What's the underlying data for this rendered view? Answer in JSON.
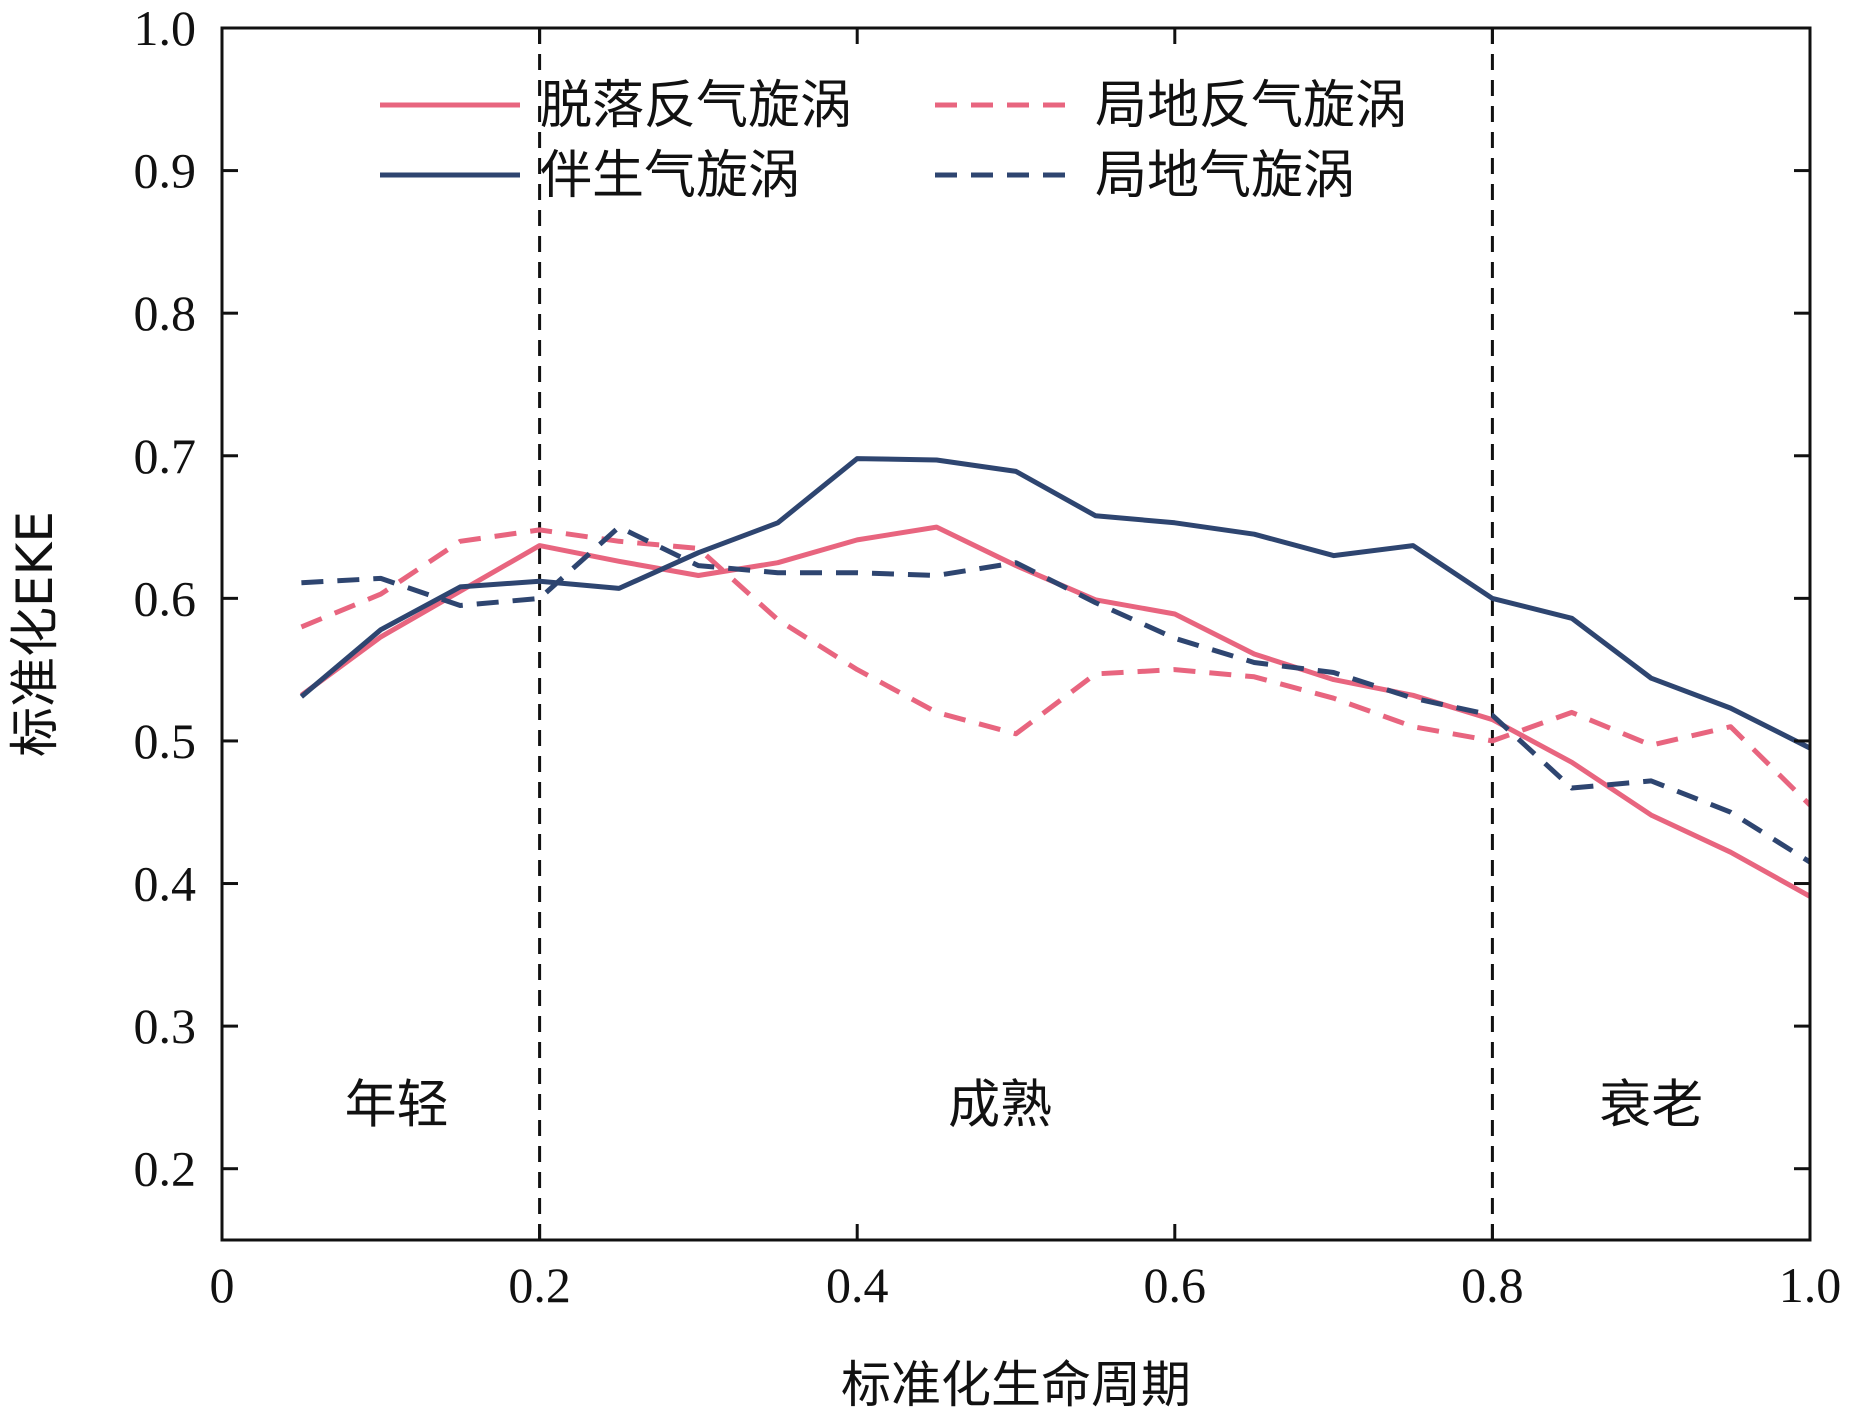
{
  "chart_data": {
    "type": "line",
    "title": "",
    "xlabel": "标准化生命周期",
    "ylabel": "标准化EKE",
    "xlim": [
      0,
      1.0
    ],
    "ylim": [
      0.15,
      1.0
    ],
    "x_ticks": [
      0,
      0.2,
      0.4,
      0.6,
      0.8,
      1.0
    ],
    "x_tick_labels": [
      "0",
      "0.2",
      "0.4",
      "0.6",
      "0.8",
      "1.0"
    ],
    "y_ticks": [
      0.2,
      0.3,
      0.4,
      0.5,
      0.6,
      0.7,
      0.8,
      0.9,
      1.0
    ],
    "y_tick_labels": [
      "0.2",
      "0.3",
      "0.4",
      "0.5",
      "0.6",
      "0.7",
      "0.8",
      "0.9",
      "1.0"
    ],
    "grid": false,
    "legend_position": "top",
    "stage_boundaries": [
      0.2,
      0.8
    ],
    "stages": [
      {
        "label": "年轻",
        "x": 0.11,
        "y": 0.245
      },
      {
        "label": "成熟",
        "x": 0.49,
        "y": 0.245
      },
      {
        "label": "衰老",
        "x": 0.9,
        "y": 0.245
      }
    ],
    "x": [
      0.05,
      0.1,
      0.15,
      0.2,
      0.25,
      0.3,
      0.35,
      0.4,
      0.45,
      0.5,
      0.55,
      0.6,
      0.65,
      0.7,
      0.75,
      0.8,
      0.85,
      0.9,
      0.95,
      1.0
    ],
    "series": [
      {
        "name": "脱落反气旋涡",
        "color": "#e8657f",
        "dash": "solid",
        "values": [
          0.532,
          0.573,
          0.605,
          0.637,
          0.626,
          0.616,
          0.625,
          0.641,
          0.65,
          0.623,
          0.599,
          0.589,
          0.561,
          0.543,
          0.532,
          0.515,
          0.485,
          0.448,
          0.422,
          0.391
        ]
      },
      {
        "name": "伴生气旋涡",
        "color": "#2e4570",
        "dash": "solid",
        "values": [
          0.531,
          0.578,
          0.608,
          0.612,
          0.607,
          0.632,
          0.653,
          0.698,
          0.697,
          0.689,
          0.658,
          0.653,
          0.645,
          0.63,
          0.637,
          0.6,
          0.586,
          0.544,
          0.523,
          0.495
        ]
      },
      {
        "name": "局地反气旋涡",
        "color": "#e8657f",
        "dash": "dashed",
        "values": [
          0.58,
          0.603,
          0.64,
          0.648,
          0.64,
          0.635,
          0.585,
          0.55,
          0.52,
          0.505,
          0.547,
          0.55,
          0.545,
          0.53,
          0.51,
          0.5,
          0.52,
          0.497,
          0.51,
          0.455
        ]
      },
      {
        "name": "局地气旋涡",
        "color": "#2e4570",
        "dash": "dashed",
        "values": [
          0.611,
          0.614,
          0.595,
          0.6,
          0.65,
          0.623,
          0.618,
          0.618,
          0.616,
          0.625,
          0.597,
          0.572,
          0.555,
          0.548,
          0.53,
          0.518,
          0.467,
          0.472,
          0.45,
          0.415
        ]
      }
    ]
  }
}
